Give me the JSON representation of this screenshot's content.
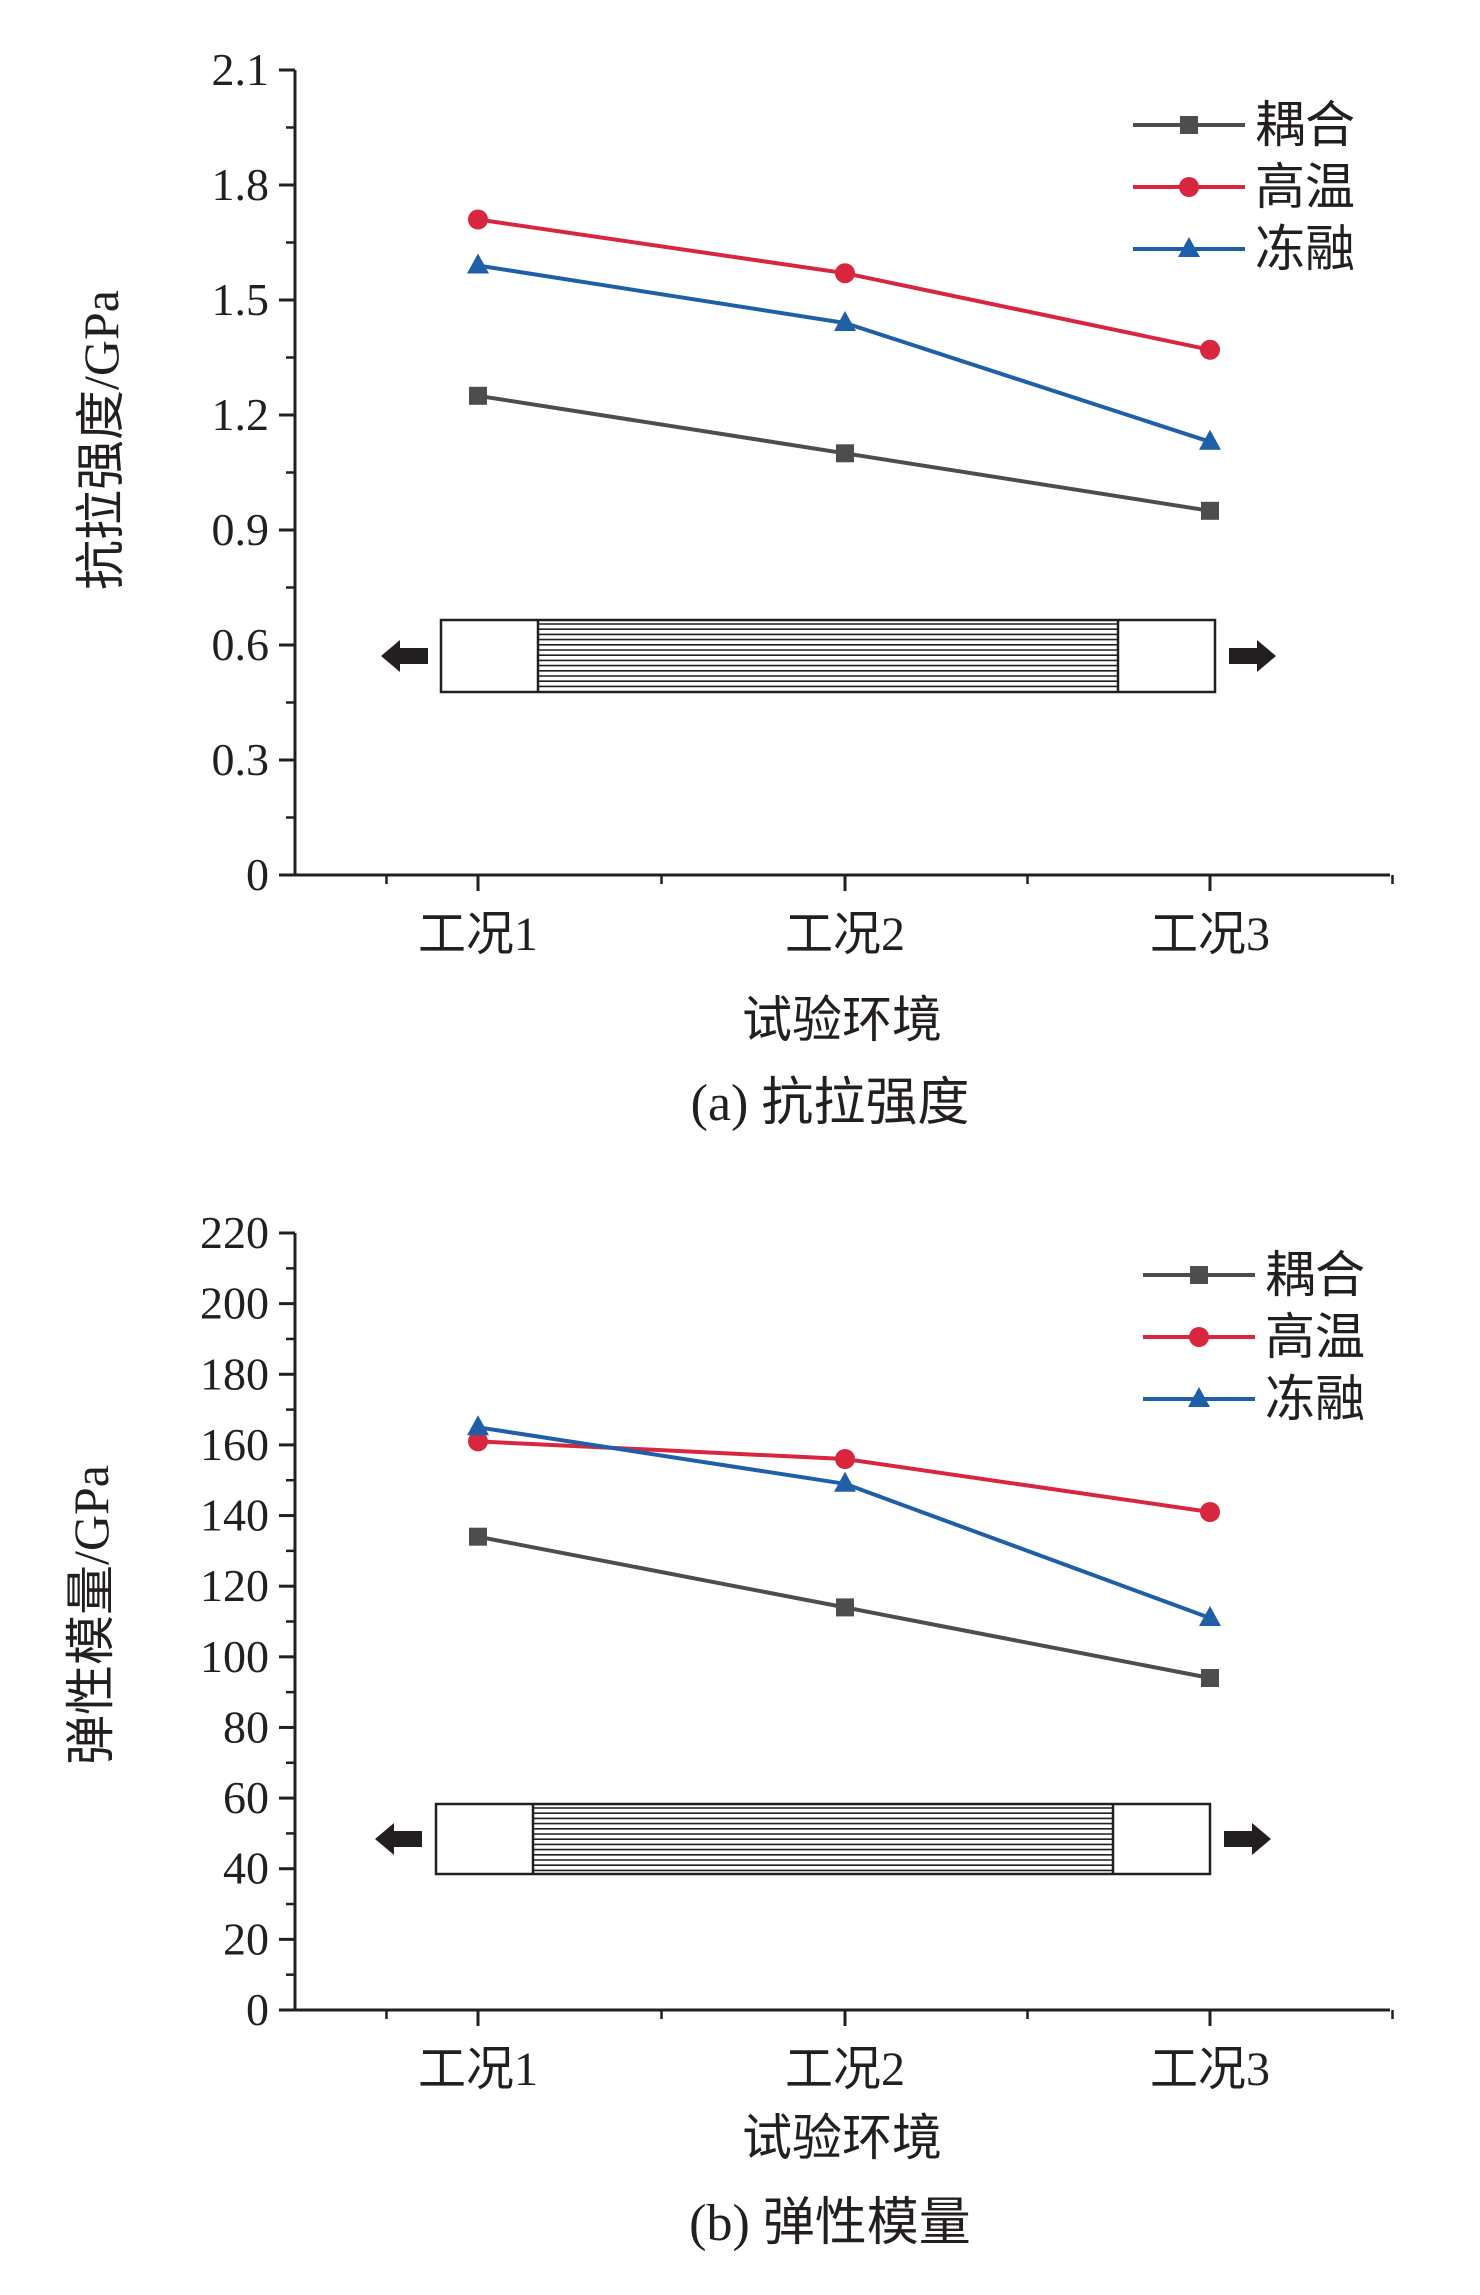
{
  "chart_data": [
    {
      "type": "line",
      "caption": "(a) 抗拉强度",
      "xlabel": "试验环境",
      "ylabel": "抗拉强度/GPa",
      "categories": [
        "工况1",
        "工况2",
        "工况3"
      ],
      "ylim": [
        0,
        2.1
      ],
      "yticks": [
        "0",
        "0.3",
        "0.6",
        "0.9",
        "1.2",
        "1.5",
        "1.8",
        "2.1"
      ],
      "ytick_values": [
        0,
        0.3,
        0.6,
        0.9,
        1.2,
        1.5,
        1.8,
        2.1
      ],
      "legend_position": "top-right",
      "series": [
        {
          "name": "耦合",
          "values": [
            1.25,
            1.1,
            0.95
          ],
          "color": "#4d4d4f",
          "marker": "square"
        },
        {
          "name": "高温",
          "values": [
            1.71,
            1.57,
            1.37
          ],
          "color": "#d7263d",
          "marker": "circle"
        },
        {
          "name": "冻融",
          "values": [
            1.59,
            1.44,
            1.13
          ],
          "color": "#1f5fa8",
          "marker": "triangle"
        }
      ]
    },
    {
      "type": "line",
      "caption": "(b) 弹性模量",
      "xlabel": "试验环境",
      "ylabel": "弹性模量/GPa",
      "categories": [
        "工况1",
        "工况2",
        "工况3"
      ],
      "ylim": [
        0,
        220
      ],
      "yticks": [
        "0",
        "20",
        "40",
        "60",
        "80",
        "100",
        "120",
        "140",
        "160",
        "180",
        "200",
        "220"
      ],
      "ytick_values": [
        0,
        20,
        40,
        60,
        80,
        100,
        120,
        140,
        160,
        180,
        200,
        220
      ],
      "legend_position": "top-right",
      "series": [
        {
          "name": "耦合",
          "values": [
            134,
            114,
            94
          ],
          "color": "#4d4d4f",
          "marker": "square"
        },
        {
          "name": "高温",
          "values": [
            161,
            156,
            141
          ],
          "color": "#d7263d",
          "marker": "circle"
        },
        {
          "name": "冻融",
          "values": [
            165,
            149,
            111
          ],
          "color": "#1f5fa8",
          "marker": "triangle"
        }
      ]
    }
  ]
}
